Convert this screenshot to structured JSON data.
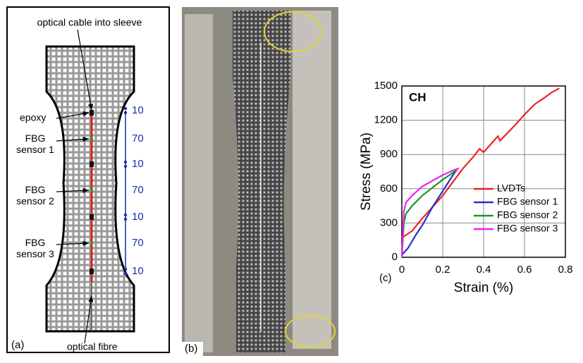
{
  "panels": {
    "a": {
      "label": "(a)",
      "cable": "optical cable into sleeve",
      "epoxy": "epoxy",
      "sensors": [
        [
          "FBG",
          "sensor 1"
        ],
        [
          "FBG",
          "sensor 2"
        ],
        [
          "FBG",
          "sensor 3"
        ]
      ],
      "dimensions": [
        10,
        70,
        10,
        70,
        10,
        70,
        10
      ],
      "fibre": "optical fibre"
    },
    "b": {
      "label": "(b)"
    }
  },
  "chart_data": {
    "type": "line",
    "panel_label": "(c)",
    "annotation": "CH",
    "x_label": "Strain (%)",
    "y_label": "Stress (MPa)",
    "xlim": [
      0,
      0.8
    ],
    "ylim": [
      0,
      1500
    ],
    "xticks": [
      0,
      0.2,
      0.4,
      0.6,
      0.8
    ],
    "yticks": [
      0,
      300,
      600,
      900,
      1200,
      1500
    ],
    "grid": true,
    "legend": "lower right",
    "series": [
      {
        "name": "LVDTs",
        "color": "#ee2222",
        "x": [
          0,
          0.05,
          0.1,
          0.15,
          0.2,
          0.25,
          0.3,
          0.35,
          0.38,
          0.4,
          0.45,
          0.47,
          0.48,
          0.55,
          0.6,
          0.65,
          0.7,
          0.73,
          0.77
        ],
        "values": [
          170,
          230,
          340,
          440,
          540,
          660,
          780,
          880,
          950,
          920,
          1020,
          1060,
          1020,
          1150,
          1250,
          1340,
          1400,
          1440,
          1480
        ]
      },
      {
        "name": "FBG sensor 1",
        "color": "#2233cc",
        "x": [
          0,
          0.03,
          0.07,
          0.1,
          0.15,
          0.2,
          0.25,
          0.27
        ],
        "values": [
          20,
          80,
          200,
          280,
          440,
          580,
          720,
          770
        ]
      },
      {
        "name": "FBG sensor 2",
        "color": "#119922",
        "x": [
          0,
          0.01,
          0.02,
          0.05,
          0.1,
          0.15,
          0.2,
          0.25,
          0.27
        ],
        "values": [
          0,
          300,
          380,
          450,
          540,
          610,
          680,
          740,
          770
        ]
      },
      {
        "name": "FBG sensor 3",
        "color": "#ee22ee",
        "x": [
          0,
          0.01,
          0.02,
          0.05,
          0.1,
          0.15,
          0.2,
          0.25,
          0.28
        ],
        "values": [
          0,
          400,
          480,
          540,
          620,
          670,
          720,
          760,
          780
        ]
      }
    ]
  }
}
